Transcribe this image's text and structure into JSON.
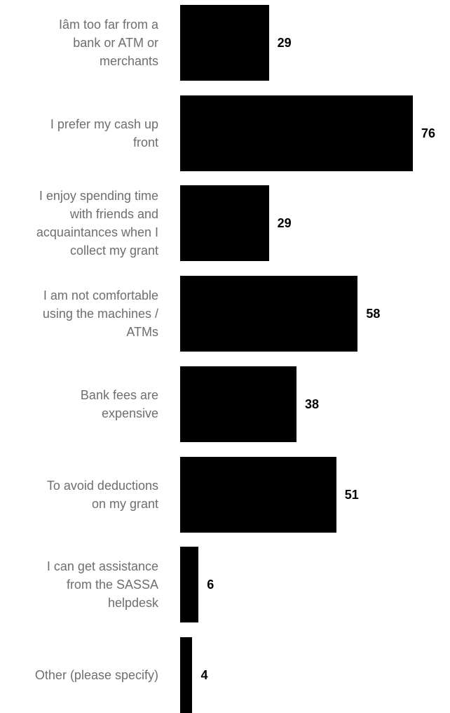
{
  "chart_data": {
    "type": "bar",
    "orientation": "horizontal",
    "categories": [
      "Iâm too far from a\nbank or ATM or\nmerchants",
      "I prefer my cash up\nfront",
      "I enjoy spending time\nwith friends and\nacquaintances when I\ncollect my grant",
      "I am not comfortable\nusing the machines /\nATMs",
      "Bank fees are\nexpensive",
      "To avoid deductions\non my grant",
      "I can get assistance\nfrom the SASSA\nhelpdesk",
      "Other (please specify)"
    ],
    "values": [
      29,
      76,
      29,
      58,
      38,
      51,
      6,
      4
    ],
    "data_labels": [
      "29",
      "76",
      "29",
      "58",
      "38",
      "51",
      "6",
      "4"
    ],
    "title": "",
    "xlabel": "",
    "ylabel": "",
    "grid": false,
    "legend": "none",
    "bar_color": "#000000",
    "label_color": "#6e6e6e"
  }
}
